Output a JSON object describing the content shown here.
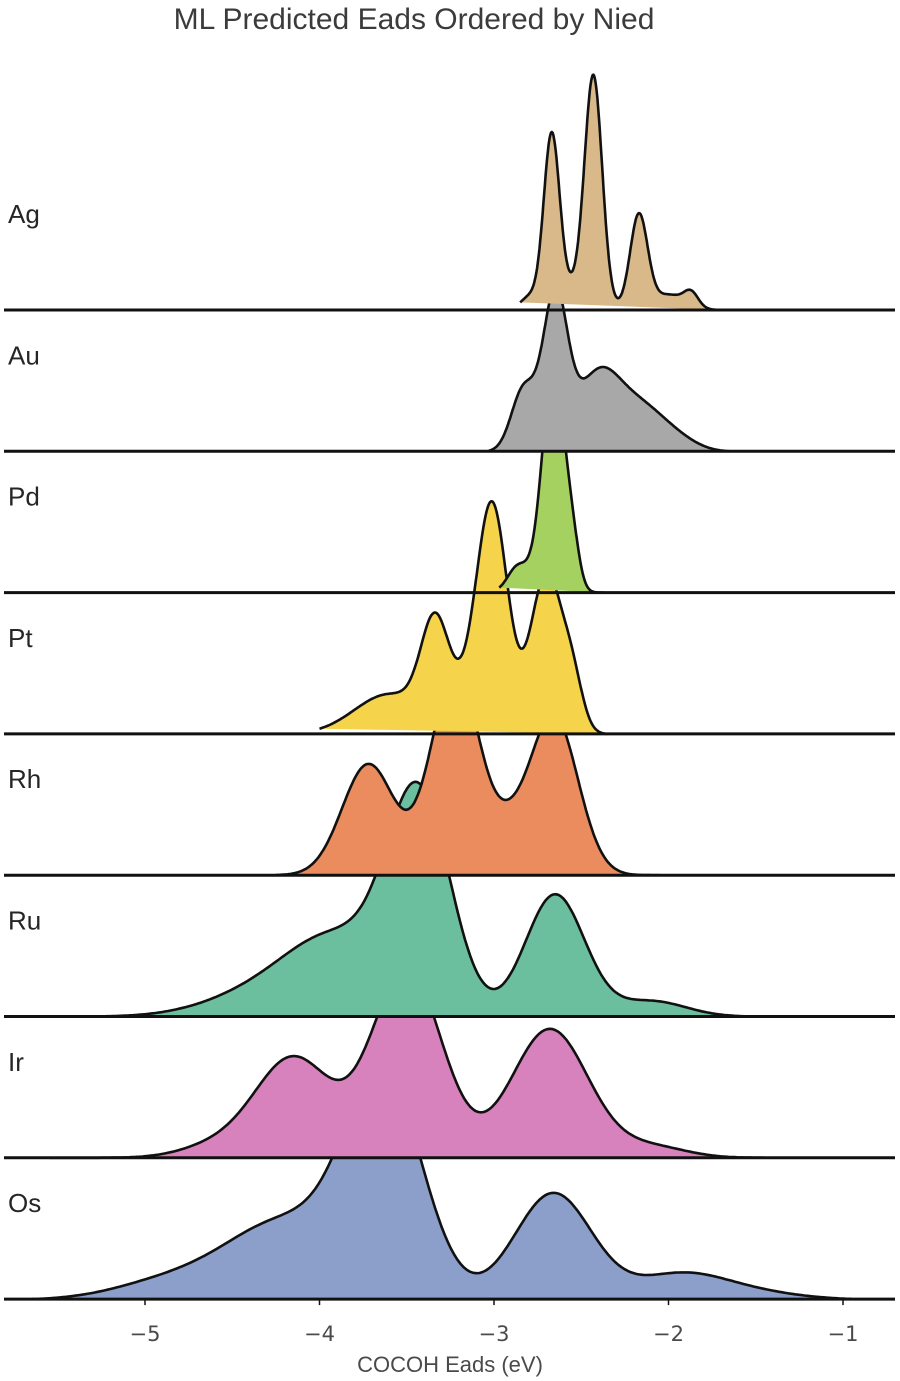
{
  "chart_data": {
    "type": "ridgeline-density",
    "title": "ML Predicted Eads Ordered by Nied",
    "xlabel": "COCOH Eads (eV)",
    "xlim": [
      -5.75,
      -0.7
    ],
    "xticks": [
      -5,
      -4,
      -3,
      -2,
      -1
    ],
    "xtick_labels": [
      "−5",
      "−4",
      "−3",
      "−2",
      "−1"
    ],
    "grid": false,
    "series": [
      {
        "name": "Ag",
        "color": "#d9b98a",
        "range": [
          -2.85,
          -1.7
        ],
        "components": [
          [
            -2.67,
            0.045,
            0.74
          ],
          [
            -2.43,
            0.05,
            1.0
          ],
          [
            -2.17,
            0.05,
            0.42
          ],
          [
            -1.87,
            0.04,
            0.06
          ],
          [
            -2.55,
            0.12,
            0.1
          ],
          [
            -2.0,
            0.1,
            0.07
          ],
          [
            -2.8,
            0.05,
            0.05
          ]
        ]
      },
      {
        "name": "Au",
        "color": "#a8a8a8",
        "range": [
          -3.03,
          -1.65
        ],
        "components": [
          [
            -2.65,
            0.07,
            0.68
          ],
          [
            -2.4,
            0.13,
            0.35
          ],
          [
            -2.15,
            0.13,
            0.17
          ],
          [
            -2.83,
            0.07,
            0.28
          ],
          [
            -1.95,
            0.12,
            0.05
          ]
        ]
      },
      {
        "name": "Pd",
        "color": "#a5d160",
        "range": [
          -2.97,
          -2.37
        ],
        "components": [
          [
            -2.66,
            0.065,
            1.0
          ],
          [
            -2.55,
            0.04,
            0.15
          ],
          [
            -2.86,
            0.06,
            0.12
          ]
        ]
      },
      {
        "name": "Pt",
        "color": "#f5d34a",
        "range": [
          -4.0,
          -2.35
        ],
        "components": [
          [
            -3.34,
            0.08,
            0.42
          ],
          [
            -3.01,
            0.09,
            1.0
          ],
          [
            -2.7,
            0.09,
            0.72
          ],
          [
            -3.6,
            0.2,
            0.18
          ],
          [
            -3.18,
            0.12,
            0.12
          ],
          [
            -2.55,
            0.06,
            0.2
          ]
        ]
      },
      {
        "name": "Rh",
        "color": "#ea8c5e",
        "range": [
          -4.25,
          -2.05
        ],
        "components": [
          [
            -3.72,
            0.15,
            0.5
          ],
          [
            -3.22,
            0.14,
            0.92
          ],
          [
            -2.66,
            0.14,
            0.72
          ],
          [
            -2.92,
            0.1,
            0.12
          ]
        ]
      },
      {
        "name": "Ru",
        "color": "#6bbf9f",
        "range": [
          -5.3,
          -1.55
        ],
        "components": [
          [
            -3.43,
            0.18,
            0.95
          ],
          [
            -3.9,
            0.3,
            0.35
          ],
          [
            -2.65,
            0.17,
            0.55
          ],
          [
            -4.4,
            0.3,
            0.08
          ],
          [
            -2.1,
            0.2,
            0.07
          ]
        ]
      },
      {
        "name": "Ir",
        "color": "#d782bd",
        "range": [
          -5.55,
          -1.45
        ],
        "components": [
          [
            -3.5,
            0.2,
            0.85
          ],
          [
            -4.15,
            0.22,
            0.45
          ],
          [
            -2.68,
            0.22,
            0.58
          ],
          [
            -4.6,
            0.2,
            0.05
          ],
          [
            -2.1,
            0.2,
            0.05
          ]
        ]
      },
      {
        "name": "Os",
        "color": "#8c9fcb",
        "range": [
          -5.65,
          -0.95
        ],
        "components": [
          [
            -3.63,
            0.22,
            0.95
          ],
          [
            -4.2,
            0.35,
            0.35
          ],
          [
            -2.66,
            0.22,
            0.48
          ],
          [
            -4.9,
            0.3,
            0.07
          ],
          [
            -1.95,
            0.25,
            0.1
          ],
          [
            -1.6,
            0.3,
            0.04
          ]
        ]
      }
    ]
  }
}
